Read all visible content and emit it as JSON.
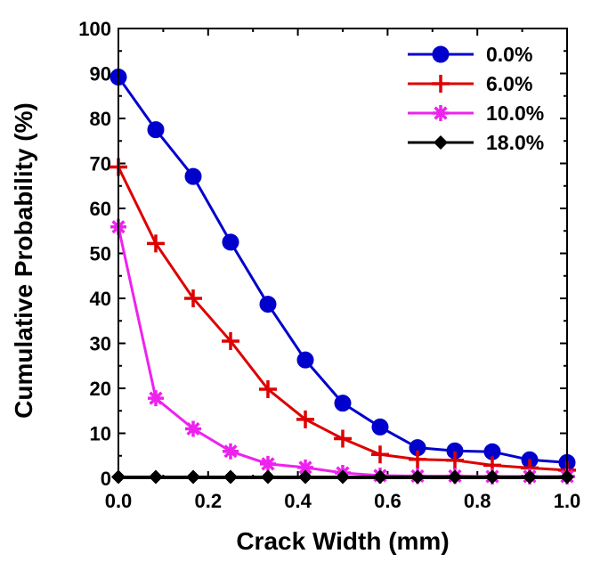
{
  "chart_data": {
    "type": "line",
    "xlabel": "Crack Width (mm)",
    "ylabel": "Cumulative Probability (%)",
    "xlim": [
      0,
      1.0
    ],
    "ylim": [
      0,
      100
    ],
    "xticks": [
      "0.0",
      "0.2",
      "0.4",
      "0.6",
      "0.8",
      "1.0"
    ],
    "yticks": [
      "0",
      "10",
      "20",
      "30",
      "40",
      "50",
      "60",
      "70",
      "80",
      "90",
      "100"
    ],
    "grid": false,
    "legend_position": "top-right",
    "x": [
      0,
      0.0833,
      0.1667,
      0.25,
      0.3333,
      0.4167,
      0.5,
      0.5833,
      0.6667,
      0.75,
      0.8333,
      0.9167,
      1.0
    ],
    "series": [
      {
        "name": "0.0%",
        "color": "#0000cc",
        "marker": "circle",
        "values": [
          89.2,
          77.5,
          67.1,
          52.5,
          38.7,
          26.3,
          16.7,
          11.4,
          6.8,
          6.1,
          5.9,
          4.1,
          3.5
        ]
      },
      {
        "name": "6.0%",
        "color": "#dd0000",
        "marker": "plus",
        "values": [
          69.2,
          52.2,
          40.0,
          30.5,
          19.8,
          13.1,
          8.8,
          5.3,
          4.2,
          4.0,
          2.9,
          2.3,
          1.8
        ]
      },
      {
        "name": "10.0%",
        "color": "#ee22ee",
        "marker": "star",
        "values": [
          55.9,
          17.8,
          11.0,
          6.0,
          3.2,
          2.4,
          1.2,
          0.6,
          0.5,
          0.5,
          0.4,
          0.4,
          0.4
        ]
      },
      {
        "name": "18.0%",
        "color": "#000000",
        "marker": "diamond",
        "values": [
          0.3,
          0.3,
          0.3,
          0.3,
          0.3,
          0.3,
          0.3,
          0.3,
          0.3,
          0.3,
          0.3,
          0.3,
          0.3
        ]
      }
    ]
  }
}
